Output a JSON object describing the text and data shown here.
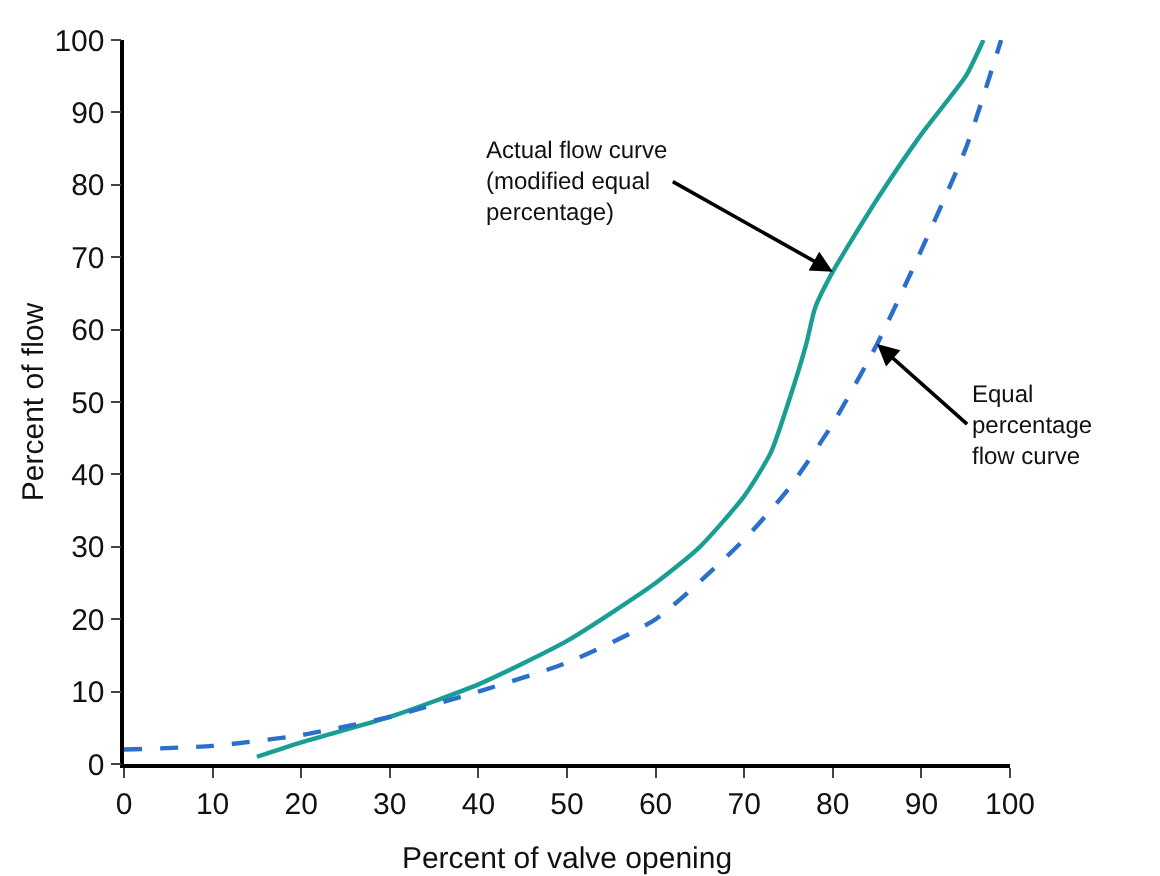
{
  "chart_data": {
    "type": "line",
    "xlabel": "Percent of valve opening",
    "ylabel": "Percent of flow",
    "xlim": [
      0,
      100
    ],
    "ylim": [
      0,
      100
    ],
    "xticks": [
      0,
      10,
      20,
      30,
      40,
      50,
      60,
      70,
      80,
      90,
      100
    ],
    "yticks": [
      0,
      10,
      20,
      30,
      40,
      50,
      60,
      70,
      80,
      90,
      100
    ],
    "grid": false,
    "marker": "none",
    "series": [
      {
        "color": "#1a9e94",
        "line_style": "solid",
        "x": [
          15,
          20,
          30,
          40,
          50,
          60,
          65,
          70,
          73,
          75,
          77,
          78,
          80,
          85,
          90,
          95,
          97
        ],
        "values": [
          1,
          3,
          6.5,
          11,
          17,
          25,
          30,
          37,
          43,
          50,
          58,
          63,
          68,
          78,
          87,
          95,
          100
        ]
      },
      {
        "color": "#2a6fc9",
        "line_style": "dashed",
        "x": [
          0,
          10,
          20,
          30,
          40,
          50,
          60,
          70,
          75,
          80,
          85,
          90,
          95,
          99
        ],
        "values": [
          2,
          2.5,
          4,
          6.5,
          10,
          14,
          20,
          31,
          38,
          47,
          58,
          71,
          85,
          100
        ]
      }
    ],
    "annotations": [
      {
        "text": "Actual flow curve\n(modified equal\npercentage)",
        "x": 80,
        "y": 68
      },
      {
        "text": "Equal\npercentage\nflow curve",
        "x": 85,
        "y": 58
      }
    ]
  }
}
